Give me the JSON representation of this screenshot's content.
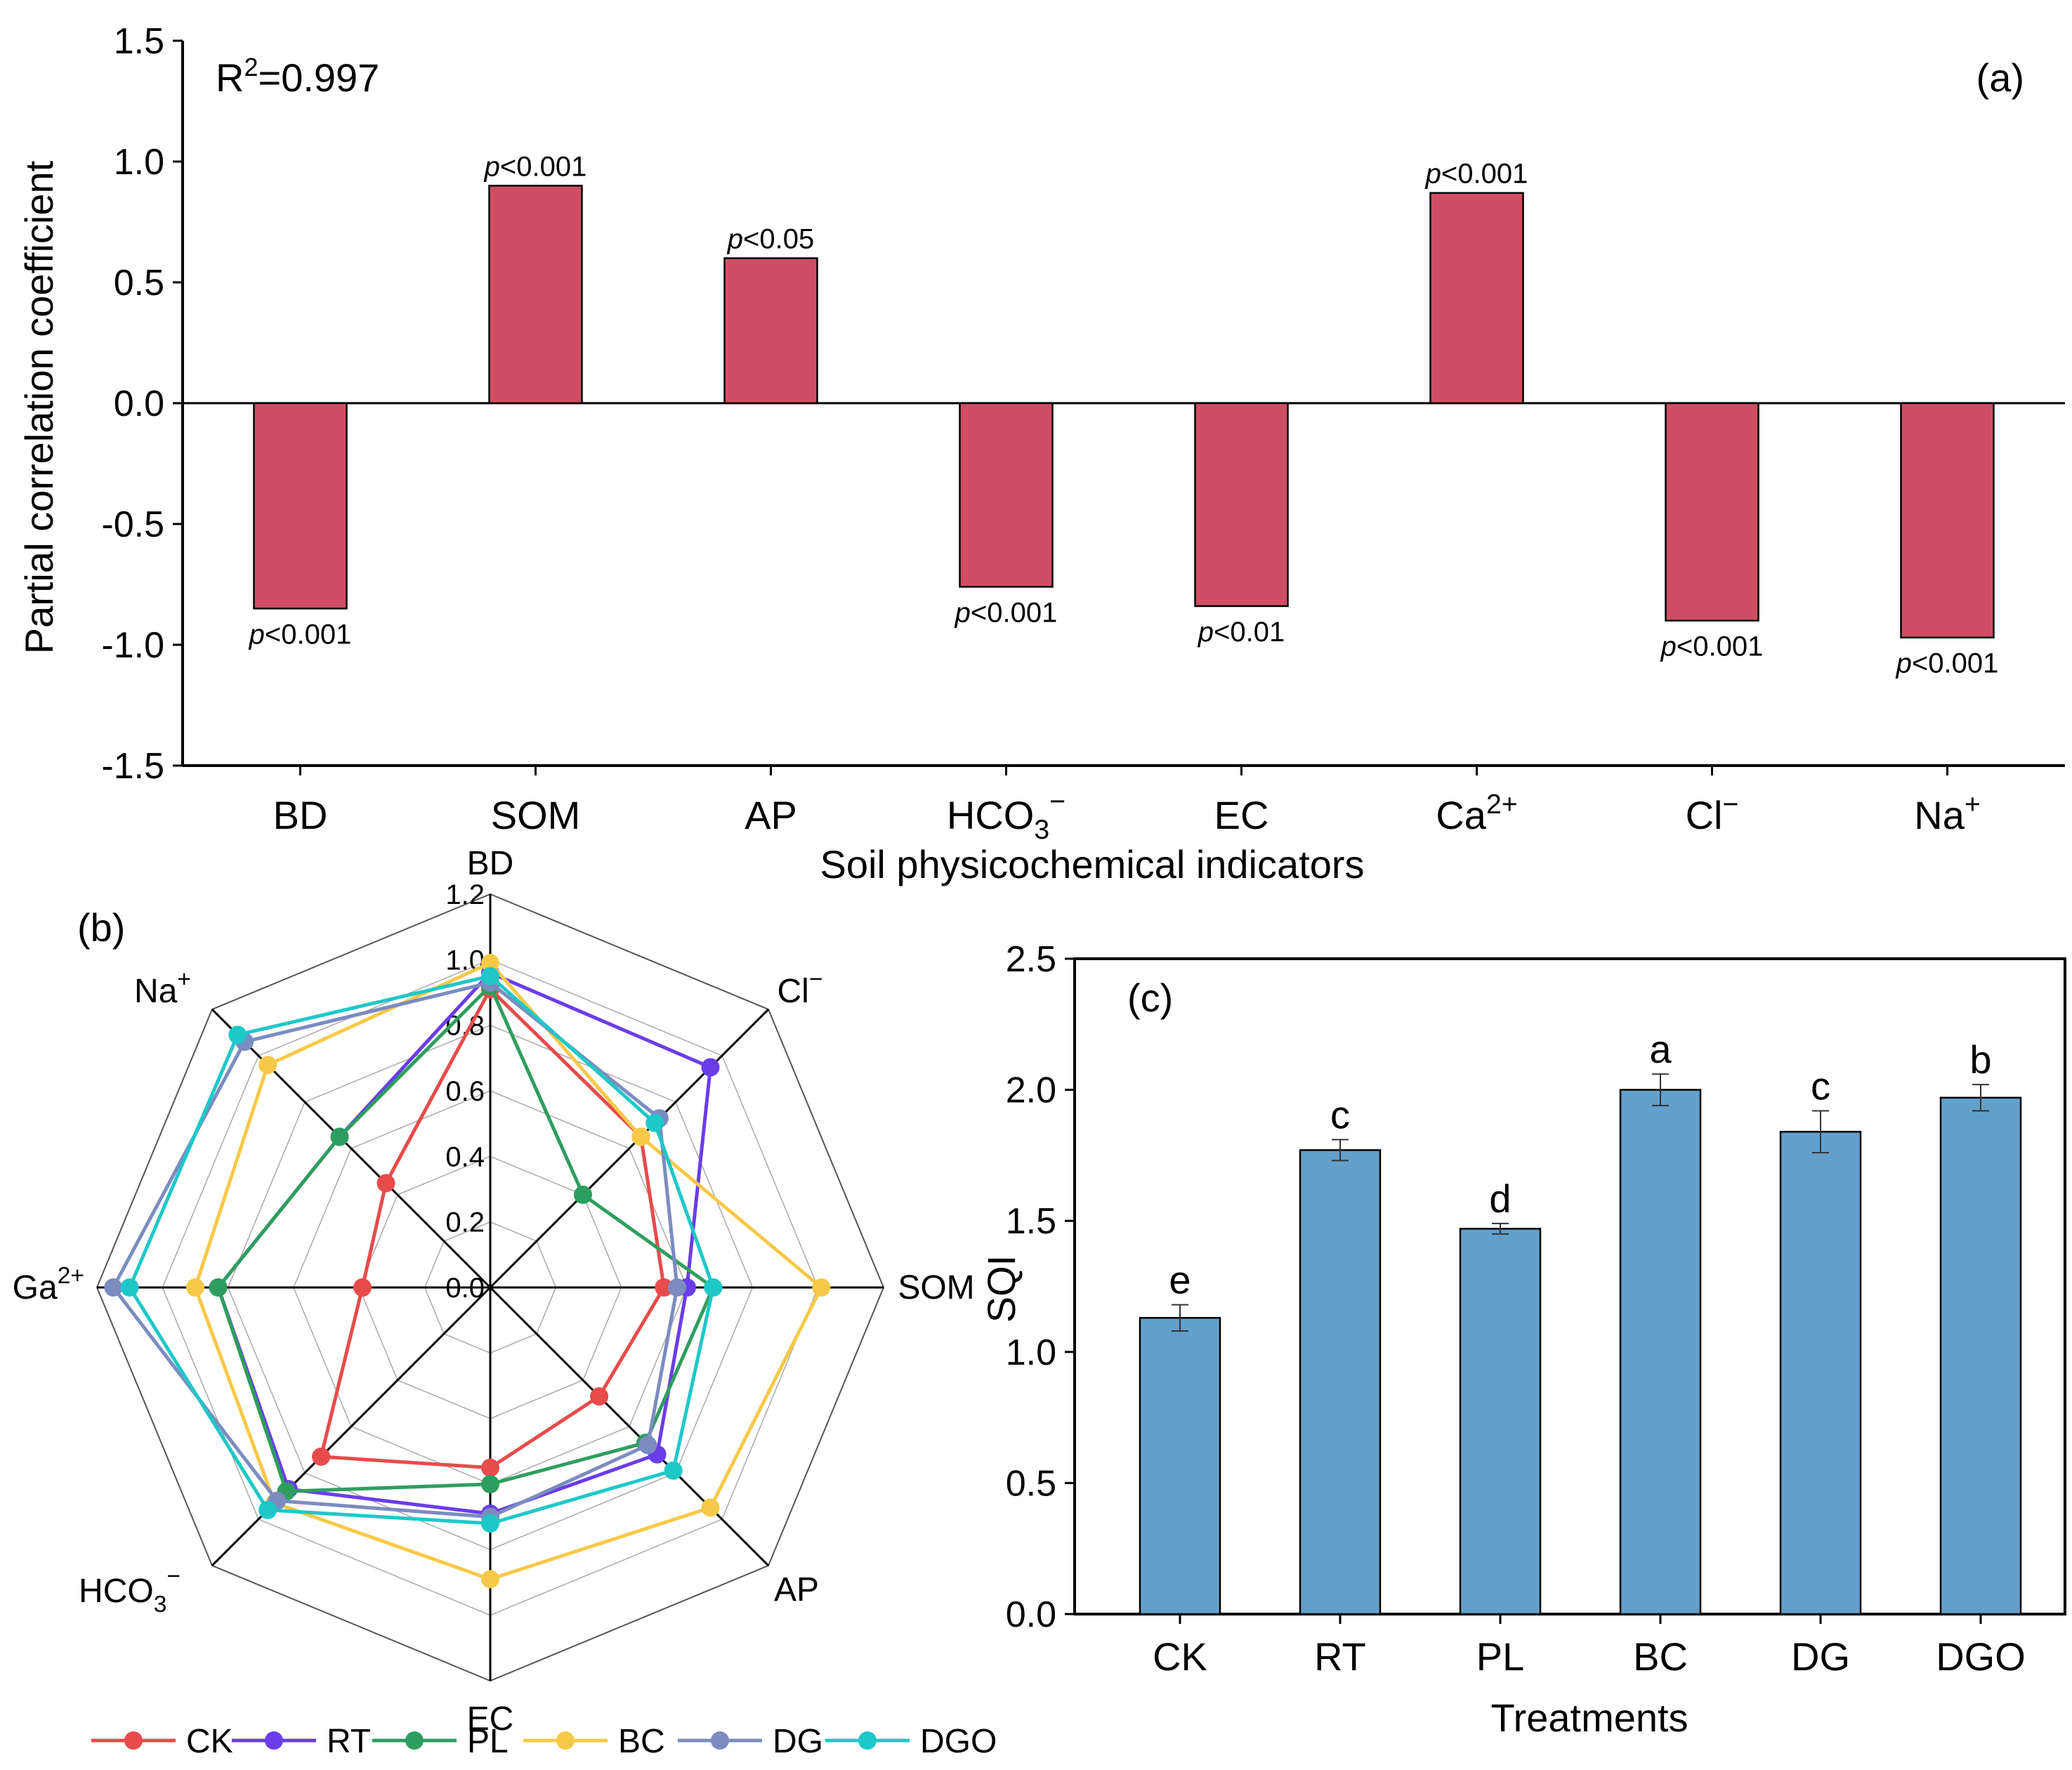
{
  "chart_data": [
    {
      "panel": "(a)",
      "type": "bar",
      "ylabel": "Partial correlation coefficient",
      "xlabel": "Soil physicochemical indicators",
      "ylim": [
        -1.5,
        1.5
      ],
      "yticks": [
        "1.5",
        "1.0",
        "0.5",
        "0.0",
        "-0.5",
        "-1.0",
        "-1.5"
      ],
      "ytick_values": [
        1.5,
        1.0,
        0.5,
        0.0,
        -0.5,
        -1.0,
        -1.5
      ],
      "r2_prefix": "R",
      "r2_sup": "2",
      "r2_value": "=0.997",
      "categories": [
        {
          "base": "BD",
          "sub": "",
          "sup": ""
        },
        {
          "base": "SOM",
          "sub": "",
          "sup": ""
        },
        {
          "base": "AP",
          "sub": "",
          "sup": ""
        },
        {
          "base": "HCO",
          "sub": "3",
          "sup": "−"
        },
        {
          "base": "EC",
          "sub": "",
          "sup": ""
        },
        {
          "base": "Ca",
          "sub": "",
          "sup": "2+"
        },
        {
          "base": "Cl",
          "sub": "",
          "sup": "−"
        },
        {
          "base": "Na",
          "sub": "",
          "sup": "+"
        }
      ],
      "values": [
        -0.85,
        0.9,
        0.6,
        -0.76,
        -0.84,
        0.87,
        -0.9,
        -0.97
      ],
      "p_symbol": "p",
      "annotations": [
        "<0.001",
        "<0.001",
        "<0.05",
        "<0.001",
        "<0.01",
        "<0.001",
        "<0.001",
        "<0.001"
      ],
      "bar_color": "#d04e63"
    },
    {
      "panel": "(b)",
      "type": "radar",
      "range": [
        0,
        1.2
      ],
      "rticks": [
        "0.0",
        "0.2",
        "0.4",
        "0.6",
        "0.8",
        "1.0",
        "1.2"
      ],
      "axes": [
        {
          "base": "BD",
          "sub": "",
          "sup": ""
        },
        {
          "base": "Cl",
          "sub": "",
          "sup": "−"
        },
        {
          "base": "SOM",
          "sub": "",
          "sup": ""
        },
        {
          "base": "AP",
          "sub": "",
          "sup": ""
        },
        {
          "base": "EC",
          "sub": "",
          "sup": ""
        },
        {
          "base": "HCO",
          "sub": "3",
          "sup": "−"
        },
        {
          "base": "Ga",
          "sub": "",
          "sup": "2+"
        },
        {
          "base": "Na",
          "sub": "",
          "sup": "+"
        }
      ],
      "series": [
        {
          "name": "CK",
          "color": "#e84b4b",
          "values": [
            0.91,
            0.65,
            0.53,
            0.47,
            0.55,
            0.73,
            0.39,
            0.45
          ]
        },
        {
          "name": "RT",
          "color": "#6a3de8",
          "values": [
            0.96,
            0.95,
            0.6,
            0.72,
            0.69,
            0.87,
            0.83,
            0.65
          ]
        },
        {
          "name": "PL",
          "color": "#2e9e5e",
          "values": [
            0.92,
            0.4,
            0.68,
            0.67,
            0.6,
            0.88,
            0.83,
            0.65
          ]
        },
        {
          "name": "BC",
          "color": "#f7c948",
          "values": [
            0.99,
            0.65,
            1.01,
            0.95,
            0.89,
            0.93,
            0.9,
            0.96
          ]
        },
        {
          "name": "DG",
          "color": "#7b8cc0",
          "values": [
            0.93,
            0.73,
            0.57,
            0.68,
            0.7,
            0.92,
            1.15,
            1.06
          ]
        },
        {
          "name": "DGO",
          "color": "#1ec8c8",
          "values": [
            0.95,
            0.71,
            0.68,
            0.79,
            0.72,
            0.96,
            1.1,
            1.09
          ]
        }
      ]
    },
    {
      "panel": "(c)",
      "type": "bar",
      "ylabel": "SQI",
      "xlabel": "Treatments",
      "ylim": [
        0,
        2.5
      ],
      "yticks": [
        "0.0",
        "0.5",
        "1.0",
        "1.5",
        "2.0",
        "2.5"
      ],
      "ytick_values": [
        0,
        0.5,
        1.0,
        1.5,
        2.0,
        2.5
      ],
      "categories": [
        "CK",
        "RT",
        "PL",
        "BC",
        "DG",
        "DGO"
      ],
      "values": [
        1.13,
        1.77,
        1.47,
        2.0,
        1.84,
        1.97
      ],
      "errors": [
        0.05,
        0.04,
        0.02,
        0.06,
        0.08,
        0.05
      ],
      "letters": [
        "e",
        "c",
        "d",
        "a",
        "c",
        "b"
      ],
      "bar_color": "#62a0cb"
    }
  ]
}
